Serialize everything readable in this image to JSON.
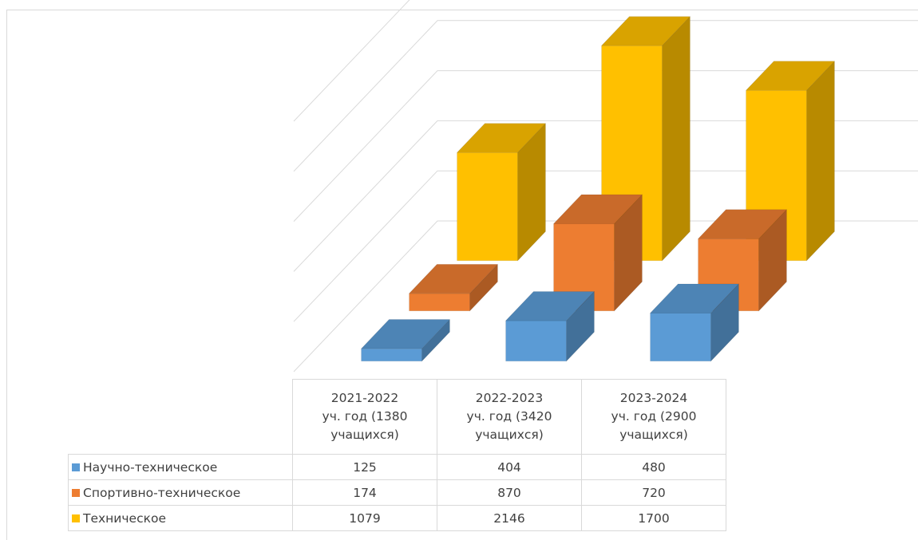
{
  "chart_data": {
    "type": "bar",
    "variant": "3d-clustered-column",
    "categories": [
      "2021-2022 уч. год (1380 учащихся)",
      "2022-2023 уч. год (3420 учащихся)",
      "2023-2024 уч. год (2900 учащихся)"
    ],
    "category_lines": [
      [
        "2021-2022",
        "уч. год (1380",
        "учащихся)"
      ],
      [
        "2022-2023",
        "уч. год (3420",
        "учащихся)"
      ],
      [
        "2023-2024",
        "уч. год (2900",
        "учащихся)"
      ]
    ],
    "series": [
      {
        "name": "Научно-техническое",
        "values": [
          125,
          404,
          480
        ],
        "color": "#5b9bd5"
      },
      {
        "name": "Спортивно-техническое",
        "values": [
          174,
          870,
          720
        ],
        "color": "#ed7d31"
      },
      {
        "name": "Техническое",
        "values": [
          1079,
          2146,
          1700
        ],
        "color": "#ffc000"
      }
    ],
    "value_axis": {
      "min": 0,
      "max": 2500,
      "major_unit": 500,
      "tick_labels_visible": false
    },
    "grid": true,
    "legend": "data-table"
  }
}
